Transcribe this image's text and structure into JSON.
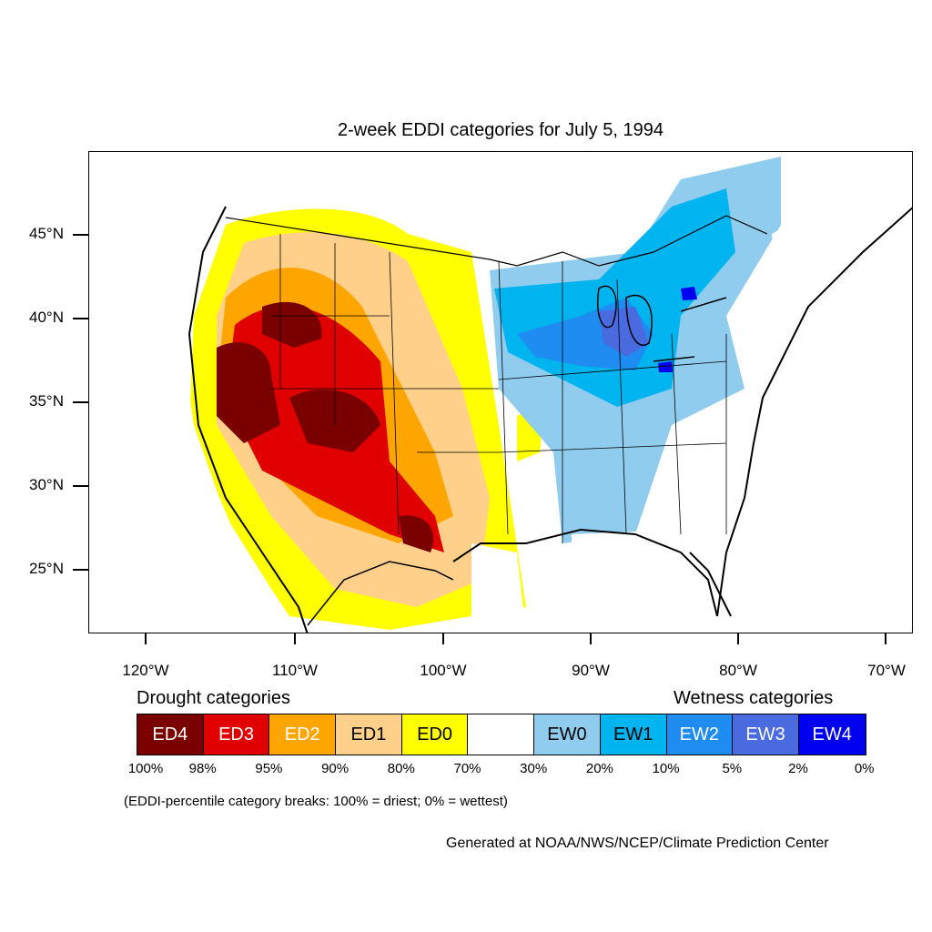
{
  "title": "2-week EDDI categories for July 5, 1994",
  "lat_labels": [
    "45°N",
    "40°N",
    "35°N",
    "30°N",
    "25°N"
  ],
  "lon_labels": [
    "120°W",
    "110°W",
    "100°W",
    "90°W",
    "80°W",
    "70°W"
  ],
  "legend": {
    "drought_heading": "Drought categories",
    "wetness_heading": "Wetness categories",
    "categories": [
      {
        "label": "ED4",
        "color": "#7a0000",
        "text_color": "#ffffff"
      },
      {
        "label": "ED3",
        "color": "#e00000",
        "text_color": "#ffffff"
      },
      {
        "label": "ED2",
        "color": "#ffa500",
        "text_color": "#ffffff"
      },
      {
        "label": "ED1",
        "color": "#ffd08a",
        "text_color": "#000000"
      },
      {
        "label": "ED0",
        "color": "#ffff00",
        "text_color": "#000000"
      },
      {
        "label": "",
        "color": "#ffffff",
        "text_color": "#000000"
      },
      {
        "label": "EW0",
        "color": "#90ccee",
        "text_color": "#000000"
      },
      {
        "label": "EW1",
        "color": "#00b4f0",
        "text_color": "#000000"
      },
      {
        "label": "EW2",
        "color": "#1e8cf0",
        "text_color": "#ffffff"
      },
      {
        "label": "EW3",
        "color": "#4a6ae0",
        "text_color": "#ffffff"
      },
      {
        "label": "EW4",
        "color": "#0000f0",
        "text_color": "#ffffff"
      }
    ],
    "percentiles": [
      "100%",
      "98%",
      "95%",
      "90%",
      "80%",
      "70%",
      "30%",
      "20%",
      "10%",
      "5%",
      "2%",
      "0%"
    ],
    "note": "(EDDI-percentile category breaks: 100% = driest; 0% = wettest)"
  },
  "credit": "Generated at NOAA/NWS/NCEP/Climate Prediction Center"
}
